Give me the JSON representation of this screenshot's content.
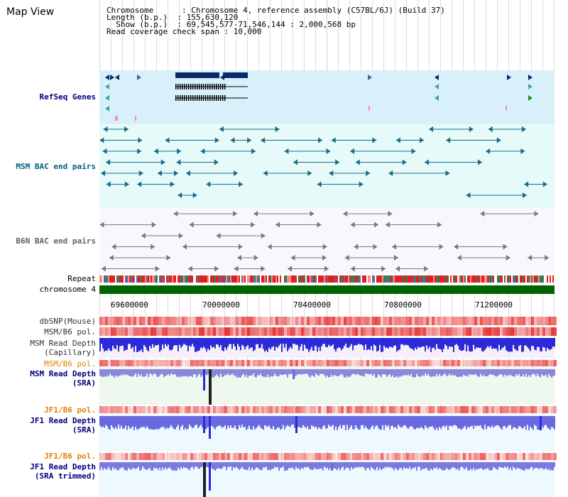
{
  "panel_title": "Map View",
  "info": {
    "line1": "Chromosome      : Chromosome 4, reference assembly (C57BL/6J) (Build 37)",
    "line2": "Length (b.p.)  : 155,630,120",
    "line3": "  Show (b.p.)  : 69,545,577-71,546,144 : 2,000,568 bp",
    "line4": "Read coverage check span : 10,000"
  },
  "tracks": {
    "refseq": "RefSeq Genes",
    "msm_bac": "MSM BAC end pairs",
    "b6n_bac": "B6N BAC end pairs",
    "repeat": "Repeat",
    "chromosome": "chromosome 4",
    "dbsnp": "dbSNP(Mouse)",
    "msm_b6_pol_1": "MSM/B6 pol.",
    "msm_depth_cap_1": "MSM Read Depth",
    "msm_depth_cap_2": "(Capillary)",
    "msm_b6_pol_2": "MSM/B6 pol.",
    "msm_depth_sra_1": "MSM Read Depth",
    "msm_depth_sra_2": "(SRA)",
    "jf1_b6_pol_1": "JF1/B6 pol.",
    "jf1_depth_sra_1": "JF1 Read Depth",
    "jf1_depth_sra_2": "(SRA)",
    "jf1_b6_pol_2": "JF1/B6 pol.",
    "jf1_depth_trim_1": "JF1 Read Depth",
    "jf1_depth_trim_2": "(SRA trimmed)"
  },
  "axis_ticks": [
    "69600000",
    "70000000",
    "70400000",
    "70800000",
    "71200000"
  ],
  "colors": {
    "refseq_label": "#000080",
    "msm_bac_label": "#006080",
    "b6n_bac_label": "#606060",
    "pol_label": "#e08000",
    "depth_label": "#000080",
    "chromosome_bar": "#006400",
    "refseq_bg": "#d8f0fa",
    "msm_bg": "#e6fafa",
    "b6n_bg": "#f8f8fc"
  }
}
